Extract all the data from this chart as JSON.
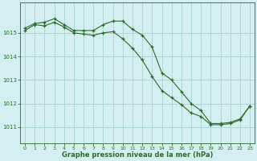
{
  "title": "Graphe pression niveau de la mer (hPa)",
  "bg_color": "#d4efef",
  "grid_color": "#b0d8d8",
  "line_color": "#2d6a2d",
  "marker_color": "#2d6a2d",
  "xlim": [
    -0.5,
    23.5
  ],
  "ylim": [
    1010.3,
    1016.3
  ],
  "yticks": [
    1011,
    1012,
    1013,
    1014,
    1015
  ],
  "xticks": [
    0,
    1,
    2,
    3,
    4,
    5,
    6,
    7,
    8,
    9,
    10,
    11,
    12,
    13,
    14,
    15,
    16,
    17,
    18,
    19,
    20,
    21,
    22,
    23
  ],
  "series1_x": [
    0,
    1,
    2,
    3,
    4,
    5,
    6,
    7,
    8,
    9,
    10,
    11,
    12,
    13,
    14,
    15,
    16,
    17,
    18,
    19,
    20,
    21,
    22,
    23
  ],
  "series1_y": [
    1015.2,
    1015.4,
    1015.45,
    1015.6,
    1015.35,
    1015.1,
    1015.1,
    1015.1,
    1015.35,
    1015.5,
    1015.5,
    1015.15,
    1014.9,
    1014.4,
    1013.3,
    1013.0,
    1012.5,
    1012.0,
    1011.7,
    1011.15,
    1011.15,
    1011.2,
    1011.35,
    1011.9
  ],
  "series2_x": [
    0,
    1,
    2,
    3,
    4,
    5,
    6,
    7,
    8,
    9,
    10,
    11,
    12,
    13,
    14,
    15,
    16,
    17,
    18,
    19,
    20,
    21,
    22,
    23
  ],
  "series2_y": [
    1015.1,
    1015.35,
    1015.3,
    1015.45,
    1015.25,
    1015.0,
    1014.95,
    1014.9,
    1015.0,
    1015.05,
    1014.75,
    1014.35,
    1013.85,
    1013.15,
    1012.55,
    1012.25,
    1011.95,
    1011.6,
    1011.45,
    1011.1,
    1011.1,
    1011.15,
    1011.3,
    1011.9
  ]
}
